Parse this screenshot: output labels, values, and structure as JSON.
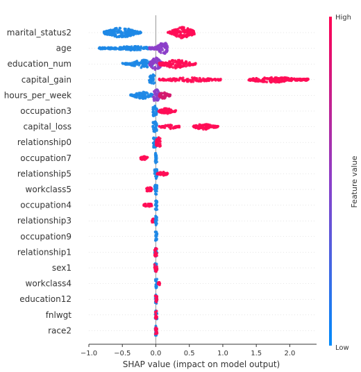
{
  "chart_data": {
    "type": "scatter",
    "subtype": "shap-beeswarm",
    "title": "",
    "xlabel": "SHAP value (impact on model output)",
    "ylabel": "",
    "xlim": [
      -1.0,
      2.4
    ],
    "xticks": [
      -1.0,
      -0.5,
      0.0,
      0.5,
      1.0,
      1.5,
      2.0
    ],
    "xtick_labels": [
      "−1.0",
      "−0.5",
      "0.0",
      "0.5",
      "1.0",
      "1.5",
      "2.0"
    ],
    "grid": false,
    "colorbar": {
      "label": "Feature value",
      "high_label": "High",
      "low_label": "Low",
      "low_color": "#008bfb",
      "high_color": "#ff0052"
    },
    "features": [
      {
        "name": "marital_status2",
        "clusters": [
          {
            "from": -0.78,
            "to": -0.22,
            "peak": -0.52,
            "spread": 7,
            "color": "#1e88e5",
            "density": 3
          },
          {
            "from": 0.18,
            "to": 0.58,
            "peak": 0.4,
            "spread": 8,
            "color": "#ff0d57",
            "density": 3
          }
        ]
      },
      {
        "name": "age",
        "clusters": [
          {
            "from": -0.85,
            "to": -0.05,
            "peak": -0.35,
            "spread": 3,
            "color": "#1e88e5",
            "density": 2
          },
          {
            "from": -0.1,
            "to": 0.18,
            "peak": 0.12,
            "spread": 8,
            "color": "#8c3fc9",
            "density": 3
          }
        ]
      },
      {
        "name": "education_num",
        "clusters": [
          {
            "from": -0.5,
            "to": -0.05,
            "peak": -0.18,
            "spread": 6,
            "color": "#1e88e5",
            "density": 2
          },
          {
            "from": -0.1,
            "to": 0.1,
            "peak": 0.0,
            "spread": 9,
            "color": "#8c3fc9",
            "density": 3
          },
          {
            "from": 0.05,
            "to": 0.6,
            "peak": 0.3,
            "spread": 6,
            "color": "#ff0d57",
            "density": 2
          }
        ]
      },
      {
        "name": "capital_gain",
        "clusters": [
          {
            "from": -0.1,
            "to": -0.02,
            "peak": -0.05,
            "spread": 8,
            "color": "#1e88e5",
            "density": 3
          },
          {
            "from": 0.05,
            "to": 0.98,
            "peak": 0.5,
            "spread": 3,
            "color": "#ff0d57",
            "density": 1
          },
          {
            "from": 1.38,
            "to": 2.28,
            "peak": 1.75,
            "spread": 4,
            "color": "#ff0d57",
            "density": 2
          }
        ]
      },
      {
        "name": "hours_per_week",
        "clusters": [
          {
            "from": -0.38,
            "to": -0.05,
            "peak": -0.2,
            "spread": 5,
            "color": "#1e88e5",
            "density": 2
          },
          {
            "from": -0.05,
            "to": 0.08,
            "peak": 0.0,
            "spread": 9,
            "color": "#8c3fc9",
            "density": 3
          },
          {
            "from": 0.05,
            "to": 0.22,
            "peak": 0.12,
            "spread": 5,
            "color": "#d4196e",
            "density": 2
          }
        ]
      },
      {
        "name": "occupation3",
        "clusters": [
          {
            "from": -0.05,
            "to": 0.02,
            "peak": -0.02,
            "spread": 8,
            "color": "#1e88e5",
            "density": 3
          },
          {
            "from": 0.04,
            "to": 0.3,
            "peak": 0.15,
            "spread": 4,
            "color": "#ff0d57",
            "density": 2
          }
        ]
      },
      {
        "name": "capital_loss",
        "clusters": [
          {
            "from": -0.05,
            "to": 0.02,
            "peak": -0.02,
            "spread": 8,
            "color": "#1e88e5",
            "density": 3
          },
          {
            "from": 0.05,
            "to": 0.35,
            "peak": 0.2,
            "spread": 3,
            "color": "#ff0d57",
            "density": 1
          },
          {
            "from": 0.55,
            "to": 0.93,
            "peak": 0.72,
            "spread": 4,
            "color": "#ff0d57",
            "density": 2
          }
        ]
      },
      {
        "name": "relationship0",
        "clusters": [
          {
            "from": -0.04,
            "to": 0.01,
            "peak": -0.02,
            "spread": 8,
            "color": "#1e88e5",
            "density": 3
          },
          {
            "from": 0.0,
            "to": 0.07,
            "peak": 0.04,
            "spread": 7,
            "color": "#ff0d57",
            "density": 3
          }
        ]
      },
      {
        "name": "occupation7",
        "clusters": [
          {
            "from": -0.23,
            "to": -0.12,
            "peak": -0.18,
            "spread": 3,
            "color": "#ff0d57",
            "density": 2
          },
          {
            "from": -0.01,
            "to": 0.02,
            "peak": 0.0,
            "spread": 7,
            "color": "#1e88e5",
            "density": 3
          }
        ]
      },
      {
        "name": "relationship5",
        "clusters": [
          {
            "from": -0.02,
            "to": 0.02,
            "peak": 0.0,
            "spread": 7,
            "color": "#1e88e5",
            "density": 3
          },
          {
            "from": 0.02,
            "to": 0.18,
            "peak": 0.1,
            "spread": 3,
            "color": "#ff0d57",
            "density": 2
          }
        ]
      },
      {
        "name": "workclass5",
        "clusters": [
          {
            "from": -0.14,
            "to": -0.06,
            "peak": -0.1,
            "spread": 3,
            "color": "#ff0d57",
            "density": 2
          },
          {
            "from": -0.02,
            "to": 0.02,
            "peak": 0.0,
            "spread": 7,
            "color": "#1e88e5",
            "density": 3
          }
        ]
      },
      {
        "name": "occupation4",
        "clusters": [
          {
            "from": -0.18,
            "to": -0.06,
            "peak": -0.12,
            "spread": 3,
            "color": "#ff0d57",
            "density": 2
          },
          {
            "from": -0.01,
            "to": 0.02,
            "peak": 0.0,
            "spread": 7,
            "color": "#1e88e5",
            "density": 3
          }
        ]
      },
      {
        "name": "relationship3",
        "clusters": [
          {
            "from": -0.06,
            "to": -0.02,
            "peak": -0.04,
            "spread": 3,
            "color": "#ff0d57",
            "density": 2
          },
          {
            "from": -0.01,
            "to": 0.02,
            "peak": 0.0,
            "spread": 7,
            "color": "#1e88e5",
            "density": 3
          }
        ]
      },
      {
        "name": "occupation9",
        "clusters": [
          {
            "from": -0.01,
            "to": 0.02,
            "peak": 0.0,
            "spread": 7,
            "color": "#1e88e5",
            "density": 3
          }
        ]
      },
      {
        "name": "relationship1",
        "clusters": [
          {
            "from": -0.02,
            "to": 0.02,
            "peak": 0.0,
            "spread": 7,
            "color": "#1e88e5",
            "density": 2
          },
          {
            "from": -0.02,
            "to": 0.02,
            "peak": 0.0,
            "spread": 6,
            "color": "#ff0d57",
            "density": 2
          }
        ]
      },
      {
        "name": "sex1",
        "clusters": [
          {
            "from": -0.02,
            "to": 0.02,
            "peak": 0.0,
            "spread": 7,
            "color": "#1e88e5",
            "density": 2
          },
          {
            "from": -0.02,
            "to": 0.02,
            "peak": 0.0,
            "spread": 6,
            "color": "#ff0d57",
            "density": 2
          }
        ]
      },
      {
        "name": "workclass4",
        "clusters": [
          {
            "from": -0.01,
            "to": 0.02,
            "peak": 0.0,
            "spread": 7,
            "color": "#1e88e5",
            "density": 3
          },
          {
            "from": 0.03,
            "to": 0.06,
            "peak": 0.05,
            "spread": 2,
            "color": "#ff0d57",
            "density": 1
          }
        ]
      },
      {
        "name": "education12",
        "clusters": [
          {
            "from": -0.01,
            "to": 0.02,
            "peak": 0.0,
            "spread": 7,
            "color": "#1e88e5",
            "density": 3
          },
          {
            "from": -0.01,
            "to": 0.02,
            "peak": 0.0,
            "spread": 5,
            "color": "#ff0d57",
            "density": 1
          }
        ]
      },
      {
        "name": "fnlwgt",
        "clusters": [
          {
            "from": -0.01,
            "to": 0.02,
            "peak": 0.0,
            "spread": 7,
            "color": "#1e88e5",
            "density": 2
          },
          {
            "from": -0.01,
            "to": 0.02,
            "peak": 0.0,
            "spread": 6,
            "color": "#ff0d57",
            "density": 2
          }
        ]
      },
      {
        "name": "race2",
        "clusters": [
          {
            "from": -0.01,
            "to": 0.02,
            "peak": 0.0,
            "spread": 7,
            "color": "#1e88e5",
            "density": 3
          },
          {
            "from": -0.01,
            "to": 0.02,
            "peak": 0.0,
            "spread": 5,
            "color": "#ff0d57",
            "density": 1
          }
        ]
      }
    ]
  }
}
